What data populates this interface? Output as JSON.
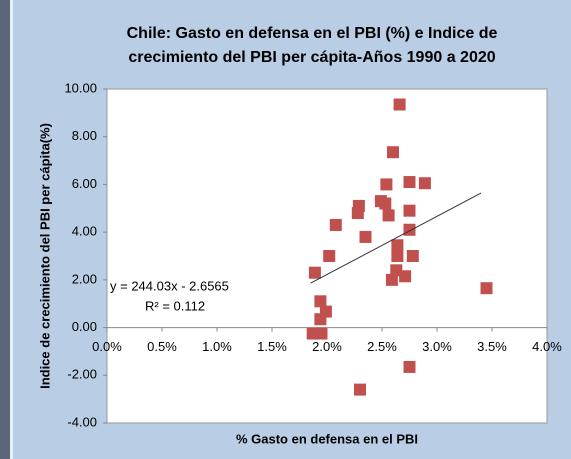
{
  "chart_data": {
    "type": "scatter",
    "title": [
      "Chile: Gasto en defensa en el PBI (%) e Indice de",
      "crecimiento del PBI per cápita-Años 1990 a 2020"
    ],
    "x_label": "% Gasto en defensa en el PBI",
    "y_label": "Indice de crecimiento del PBI per cápita(%)",
    "color": "#c0504d",
    "x": [
      0.0187,
      0.0195,
      0.0194,
      0.0194,
      0.0199,
      0.0189,
      0.0202,
      0.0208,
      0.0228,
      0.0229,
      0.0235,
      0.0249,
      0.0254,
      0.0253,
      0.0256,
      0.026,
      0.0266,
      0.0264,
      0.0264,
      0.0263,
      0.0259,
      0.0271,
      0.0275,
      0.0275,
      0.0275,
      0.0278,
      0.0289,
      0.0275,
      0.023,
      0.0345
    ],
    "values": [
      -0.25,
      -0.25,
      1.1,
      0.35,
      0.67,
      2.3,
      3.0,
      4.3,
      4.8,
      5.1,
      3.8,
      5.3,
      6.0,
      5.2,
      4.7,
      7.35,
      9.35,
      3.45,
      3.0,
      2.4,
      2.0,
      2.15,
      6.1,
      4.9,
      4.1,
      3.0,
      6.05,
      -1.65,
      -2.6,
      1.65
    ],
    "xlim": [
      0,
      0.04
    ],
    "xticks": [
      {
        "value": 0,
        "label": "0.0%"
      },
      {
        "value": 0.005,
        "label": "0.5%"
      },
      {
        "value": 0.01,
        "label": "1.0%"
      },
      {
        "value": 0.015,
        "label": "1.5%"
      },
      {
        "value": 0.02,
        "label": "2.0%"
      },
      {
        "value": 0.025,
        "label": "2.5%"
      },
      {
        "value": 0.03,
        "label": "3.0%"
      },
      {
        "value": 0.035,
        "label": "3.5%"
      },
      {
        "value": 0.04,
        "label": "4.0%"
      }
    ],
    "ylim": [
      -4,
      10
    ],
    "yticks": [
      {
        "value": -4,
        "label": "-4.00"
      },
      {
        "value": -2,
        "label": "-2.00"
      },
      {
        "value": 0,
        "label": "0.00"
      },
      {
        "value": 2,
        "label": "2.00"
      },
      {
        "value": 4,
        "label": "4.00"
      },
      {
        "value": 6,
        "label": "6.00"
      },
      {
        "value": 8,
        "label": "8.00"
      },
      {
        "value": 10,
        "label": "10.00"
      }
    ],
    "trendline": {
      "slope": 244.03,
      "intercept": -2.6565,
      "xrange": [
        0.0185,
        0.034
      ],
      "equation": "y = 244.03x - 2.6565",
      "r2": "R² = 0.112"
    }
  }
}
